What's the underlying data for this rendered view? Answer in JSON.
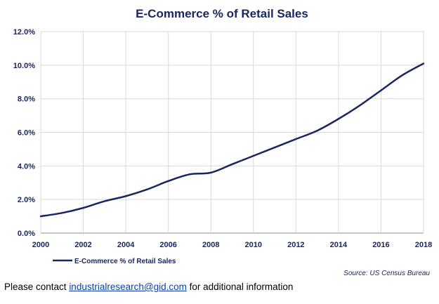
{
  "chart_data": {
    "type": "line",
    "title": "E-Commerce % of Retail Sales",
    "xlabel": "",
    "ylabel": "",
    "x": [
      2000,
      2001,
      2002,
      2003,
      2004,
      2005,
      2006,
      2007,
      2008,
      2009,
      2010,
      2011,
      2012,
      2013,
      2014,
      2015,
      2016,
      2017,
      2018
    ],
    "series": [
      {
        "name": "E-Commerce % of Retail Sales",
        "values": [
          1.0,
          1.2,
          1.5,
          1.9,
          2.2,
          2.6,
          3.1,
          3.5,
          3.6,
          4.1,
          4.6,
          5.1,
          5.6,
          6.1,
          6.8,
          7.6,
          8.5,
          9.4,
          10.1
        ],
        "color": "#1a2660"
      }
    ],
    "xticks": [
      "2000",
      "2002",
      "2004",
      "2006",
      "2008",
      "2010",
      "2012",
      "2014",
      "2016",
      "2018"
    ],
    "yticks": [
      "0.0%",
      "2.0%",
      "4.0%",
      "6.0%",
      "8.0%",
      "10.0%",
      "12.0%"
    ],
    "xlim": [
      2000,
      2018
    ],
    "ylim": [
      0,
      12
    ],
    "grid": true,
    "legend_position": "bottom-left",
    "source": "Source: US Census Bureau"
  },
  "footer": {
    "prefix": "Please contact ",
    "email": "industrialresearch@gid.com",
    "suffix": " for additional information"
  }
}
